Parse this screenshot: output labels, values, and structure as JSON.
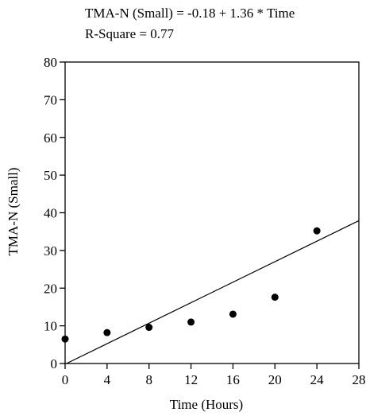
{
  "chart_data": {
    "type": "scatter",
    "title": "",
    "annotations": [
      "TMA-N (Small) = -0.18 + 1.36 * Time",
      "R-Square = 0.77"
    ],
    "xlabel": "Time (Hours)",
    "ylabel": "TMA-N (Small)",
    "xlim": [
      0,
      28
    ],
    "ylim": [
      0,
      80
    ],
    "xticks": [
      0,
      4,
      8,
      12,
      16,
      20,
      24,
      28
    ],
    "yticks": [
      0,
      10,
      20,
      30,
      40,
      50,
      60,
      70,
      80
    ],
    "grid": false,
    "legend": "none",
    "series": [
      {
        "x": [
          0,
          4,
          8,
          12,
          16,
          20,
          24
        ],
        "y": [
          6.5,
          8.2,
          9.6,
          11.0,
          13.1,
          17.6,
          35.2
        ]
      }
    ],
    "fit_line": {
      "intercept": -0.18,
      "slope": 1.36,
      "x_range": [
        0,
        28
      ]
    },
    "colors": {
      "axis": "#000000",
      "points": "#000000",
      "background": "#ffffff"
    }
  }
}
